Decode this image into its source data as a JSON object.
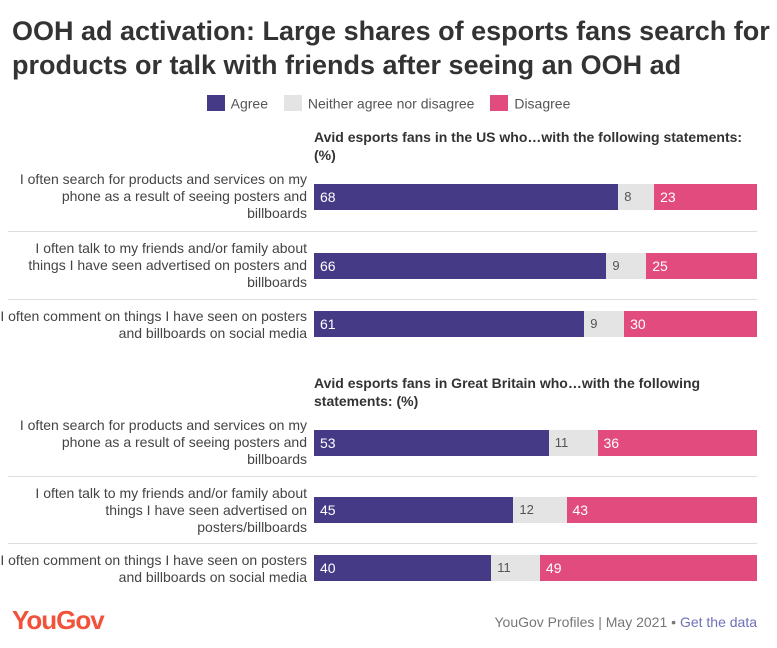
{
  "title": "OOH ad activation: Large shares of esports fans search for products or talk with friends after seeing an OOH ad",
  "legend": [
    {
      "label": "Agree",
      "color": "#453a86"
    },
    {
      "label": "Neither agree nor disagree",
      "color": "#e4e4e4"
    },
    {
      "label": "Disagree",
      "color": "#e14b7e"
    }
  ],
  "chart_data": [
    {
      "type": "bar",
      "orientation": "horizontal",
      "stacked": true,
      "title": "Avid esports fans in the US who…with the following statements: (%)",
      "categories": [
        "I often search for products and services on my phone as a result of seeing posters and billboards",
        "I often talk to my friends and/or family about things I have seen advertised on posters and billboards",
        "I often comment on things I have seen on posters and billboards on social media"
      ],
      "series": [
        {
          "name": "Agree",
          "values": [
            68,
            66,
            61
          ]
        },
        {
          "name": "Neither agree nor disagree",
          "values": [
            8,
            9,
            9
          ]
        },
        {
          "name": "Disagree",
          "values": [
            23,
            25,
            30
          ]
        }
      ]
    },
    {
      "type": "bar",
      "orientation": "horizontal",
      "stacked": true,
      "title": "Avid esports fans in Great Britain who…with the following statements: (%)",
      "categories": [
        "I often search for products and services on my phone as a result of seeing posters and billboards",
        "I often talk to my friends and/or family about things I have seen advertised on posters/billboards",
        "I often comment on things I have seen on posters and billboards on social media"
      ],
      "series": [
        {
          "name": "Agree",
          "values": [
            53,
            45,
            40
          ]
        },
        {
          "name": "Neither agree nor disagree",
          "values": [
            11,
            12,
            11
          ]
        },
        {
          "name": "Disagree",
          "values": [
            36,
            43,
            49
          ]
        }
      ]
    }
  ],
  "footer": {
    "logo": "YouGov",
    "source": "YouGov Profiles | May 2021 •",
    "link": "Get the data"
  }
}
